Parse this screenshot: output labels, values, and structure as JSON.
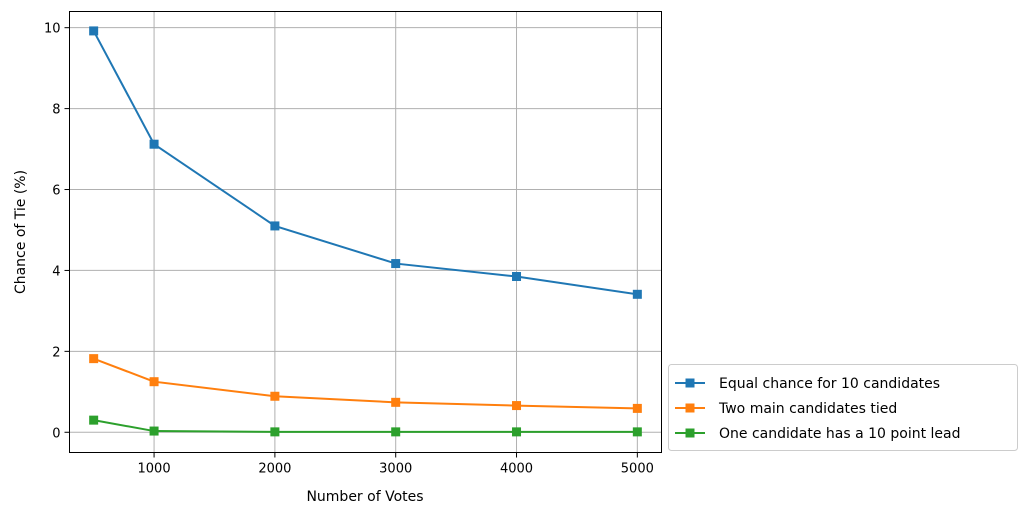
{
  "chart_data": {
    "type": "line",
    "title": "",
    "xlabel": "Number of Votes",
    "ylabel": "Chance of Tie (%)",
    "xlim": [
      300,
      5200
    ],
    "ylim": [
      -0.5,
      10.4
    ],
    "xticks": [
      1000,
      2000,
      3000,
      4000,
      5000
    ],
    "yticks": [
      0,
      2,
      4,
      6,
      8,
      10
    ],
    "grid": true,
    "legend_position": "outside-bottom-right",
    "x": [
      500,
      1000,
      2000,
      3000,
      4000,
      5000
    ],
    "series": [
      {
        "name": "Equal chance for 10 candidates",
        "color": "#1f77b4",
        "marker": "square",
        "values": [
          9.92,
          7.12,
          5.1,
          4.17,
          3.85,
          3.41
        ]
      },
      {
        "name": "Two main candidates tied",
        "color": "#ff7f0e",
        "marker": "square",
        "values": [
          1.82,
          1.25,
          0.89,
          0.74,
          0.66,
          0.59
        ]
      },
      {
        "name": "One candidate has a 10 point lead",
        "color": "#2ca02c",
        "marker": "square",
        "values": [
          0.3,
          0.03,
          0.01,
          0.01,
          0.01,
          0.01
        ]
      }
    ]
  }
}
